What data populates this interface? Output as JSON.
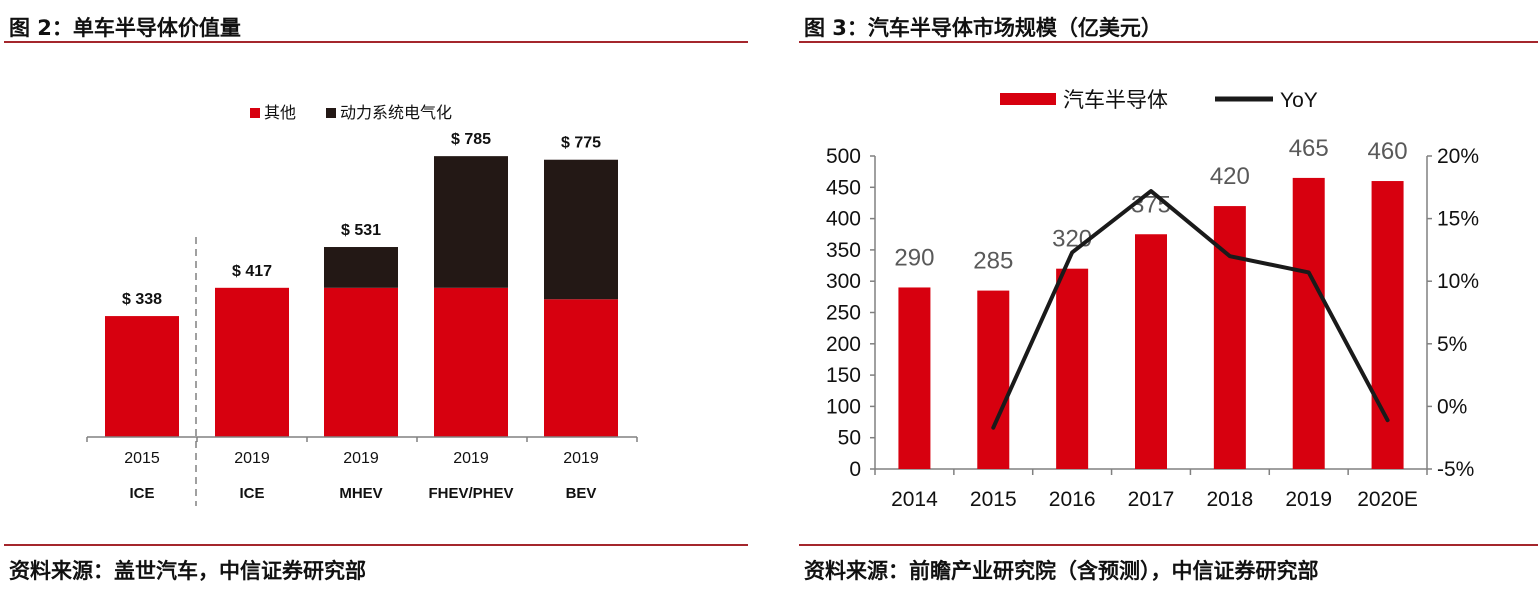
{
  "colors": {
    "red": "#d7000f",
    "black": "#231815",
    "rule": "#a4262c",
    "axis": "#808080",
    "line": "#1a1a1a"
  },
  "left_panel": {
    "title": "图 2：单车半导体价值量",
    "source": "资料来源：盖世汽车，中信证券研究部"
  },
  "right_panel": {
    "title": "图 3：汽车半导体市场规模（亿美元）",
    "source": "资料来源：前瞻产业研究院（含预测），中信证券研究部"
  },
  "chart_data": [
    {
      "type": "bar",
      "stacked": true,
      "title": "",
      "categories": [
        "2015",
        "2019",
        "2019",
        "2019",
        "2019"
      ],
      "category_sublabels": [
        "ICE",
        "ICE",
        "MHEV",
        "FHEV/PHEV",
        "BEV"
      ],
      "series": [
        {
          "name": "其他",
          "color": "#d7000f",
          "values": [
            338,
            417,
            417,
            417,
            385
          ]
        },
        {
          "name": "动力系统电气化",
          "color": "#231815",
          "values": [
            0,
            0,
            114,
            368,
            390
          ]
        }
      ],
      "totals": [
        338,
        417,
        531,
        785,
        775
      ],
      "total_labels": [
        "$ 338",
        "$ 417",
        "$ 531",
        "$ 785",
        "$ 775"
      ],
      "ylim": [
        0,
        900
      ],
      "legend_position": "top-center",
      "divider_after_category": 0
    },
    {
      "type": "bar+line",
      "title": "",
      "categories": [
        "2014",
        "2015",
        "2016",
        "2017",
        "2018",
        "2019",
        "2020E"
      ],
      "series": [
        {
          "name": "汽车半导体",
          "type": "bar",
          "axis": "left",
          "color": "#d7000f",
          "values": [
            290,
            285,
            320,
            375,
            420,
            465,
            460
          ]
        },
        {
          "name": "YoY",
          "type": "line",
          "axis": "right",
          "color": "#1a1a1a",
          "values": [
            null,
            -1.7,
            12.3,
            17.2,
            12.0,
            10.7,
            -1.1
          ]
        }
      ],
      "y_left": {
        "min": 0,
        "max": 500,
        "step": 50,
        "tick_labels": [
          "0",
          "50",
          "100",
          "150",
          "200",
          "250",
          "300",
          "350",
          "400",
          "450",
          "500"
        ]
      },
      "y_right": {
        "min": -5,
        "max": 20,
        "step": 5,
        "unit": "%",
        "tick_labels": [
          "-5%",
          "0%",
          "5%",
          "10%",
          "15%",
          "20%"
        ]
      },
      "legend_position": "top-center"
    }
  ]
}
